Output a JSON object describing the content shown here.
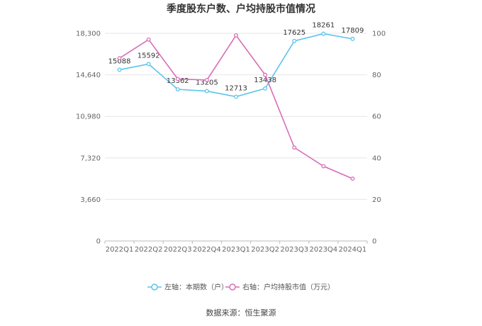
{
  "title": "季度股东户数、户均持股市值情况",
  "source": "数据来源：恒生聚源",
  "chart_data": {
    "type": "line",
    "categories": [
      "2022Q1",
      "2022Q2",
      "2022Q3",
      "2022Q4",
      "2023Q1",
      "2023Q2",
      "2023Q3",
      "2023Q4",
      "2024Q1"
    ],
    "left_axis": {
      "ylim": [
        0,
        18300
      ],
      "ticks": [
        "0",
        "3,660",
        "7,320",
        "10,980",
        "14,640",
        "18,300"
      ]
    },
    "right_axis": {
      "ylim": [
        0,
        100
      ],
      "ticks": [
        "0",
        "20",
        "40",
        "60",
        "80",
        "100"
      ]
    },
    "grid": true,
    "legend_position": "bottom",
    "series": [
      {
        "name": "左轴：本期数（户）",
        "axis": "left",
        "color": "#5bc4ea",
        "values": [
          15088,
          15592,
          13362,
          13205,
          12713,
          13438,
          17625,
          18261,
          17809
        ],
        "labels": [
          "15088",
          "15592",
          "13362",
          "13205",
          "12713",
          "13438",
          "17625",
          "18261",
          "17809"
        ]
      },
      {
        "name": "右轴：户均持股市值（万元）",
        "axis": "right",
        "color": "#d96cb8",
        "values": [
          88,
          97,
          78,
          77.5,
          99,
          80,
          45,
          36,
          30
        ]
      }
    ]
  }
}
